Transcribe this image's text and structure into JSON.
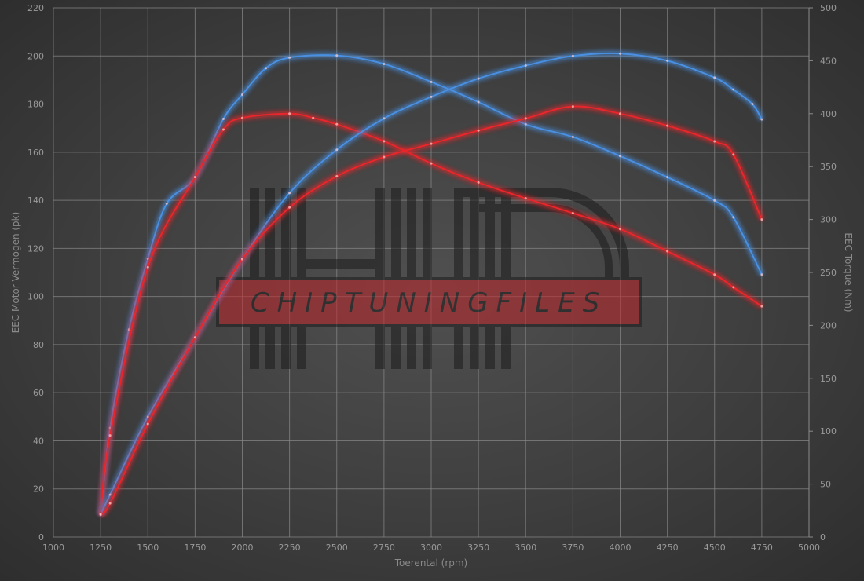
{
  "chart_data": {
    "type": "line",
    "xlabel": "Toerental (rpm)",
    "ylabel_left": "EEC Motor Vermogen (pk)",
    "ylabel_right": "EEC Torque (Nm)",
    "xlim": [
      1000,
      5000
    ],
    "xticks": [
      1000,
      1250,
      1500,
      1750,
      2000,
      2250,
      2500,
      2750,
      3000,
      3250,
      3500,
      3750,
      4000,
      4250,
      4500,
      4750,
      5000
    ],
    "ylim_left": [
      0,
      220
    ],
    "yticks_left": [
      0,
      20,
      40,
      60,
      80,
      100,
      120,
      140,
      160,
      180,
      200,
      220
    ],
    "ylim_right": [
      0,
      500
    ],
    "yticks_right": [
      0,
      50,
      100,
      150,
      200,
      250,
      300,
      350,
      400,
      450,
      500
    ],
    "grid": true,
    "watermark": "CHIPTUNINGFILES",
    "colors": {
      "tuned": "#4a90e2",
      "stock": "#e8262b"
    },
    "series": [
      {
        "axis": "right",
        "color": "#4a90e2",
        "x": [
          1250,
          1300,
          1400,
          1500,
          1600,
          1750,
          1900,
          2000,
          2125,
          2250,
          2500,
          2750,
          3000,
          3250,
          3500,
          3750,
          4000,
          4250,
          4500,
          4600,
          4750
        ],
        "y": [
          21,
          103,
          196,
          263,
          315,
          340,
          395,
          418,
          443,
          453,
          455,
          447,
          430,
          411,
          390,
          378,
          360,
          340,
          318,
          302,
          248
        ]
      },
      {
        "axis": "right",
        "color": "#e8262b",
        "x": [
          1250,
          1300,
          1500,
          1750,
          1900,
          2000,
          2250,
          2375,
          2500,
          2750,
          3000,
          3250,
          3500,
          3750,
          4000,
          4250,
          4500,
          4600,
          4750
        ],
        "y": [
          21,
          96,
          255,
          340,
          385,
          396,
          400,
          396,
          390,
          374,
          353,
          335,
          320,
          306,
          291,
          270,
          248,
          236,
          218
        ]
      },
      {
        "axis": "left",
        "color": "#4a90e2",
        "x": [
          1250,
          1300,
          1500,
          1750,
          2000,
          2250,
          2500,
          2750,
          3000,
          3250,
          3500,
          3750,
          4000,
          4250,
          4500,
          4600,
          4700,
          4750
        ],
        "y": [
          9.5,
          17.6,
          50,
          83,
          115.5,
          143,
          161,
          174,
          183,
          190.6,
          196,
          200,
          201,
          198,
          191,
          186,
          180,
          173.6
        ]
      },
      {
        "axis": "left",
        "color": "#e8262b",
        "x": [
          1250,
          1300,
          1500,
          1750,
          2000,
          2250,
          2500,
          2750,
          3000,
          3250,
          3500,
          3750,
          4000,
          4250,
          4500,
          4600,
          4750
        ],
        "y": [
          9.5,
          14,
          47,
          83,
          115.5,
          137,
          150,
          158,
          163.5,
          169,
          174,
          179,
          176,
          171,
          164.5,
          159,
          132
        ]
      }
    ]
  }
}
